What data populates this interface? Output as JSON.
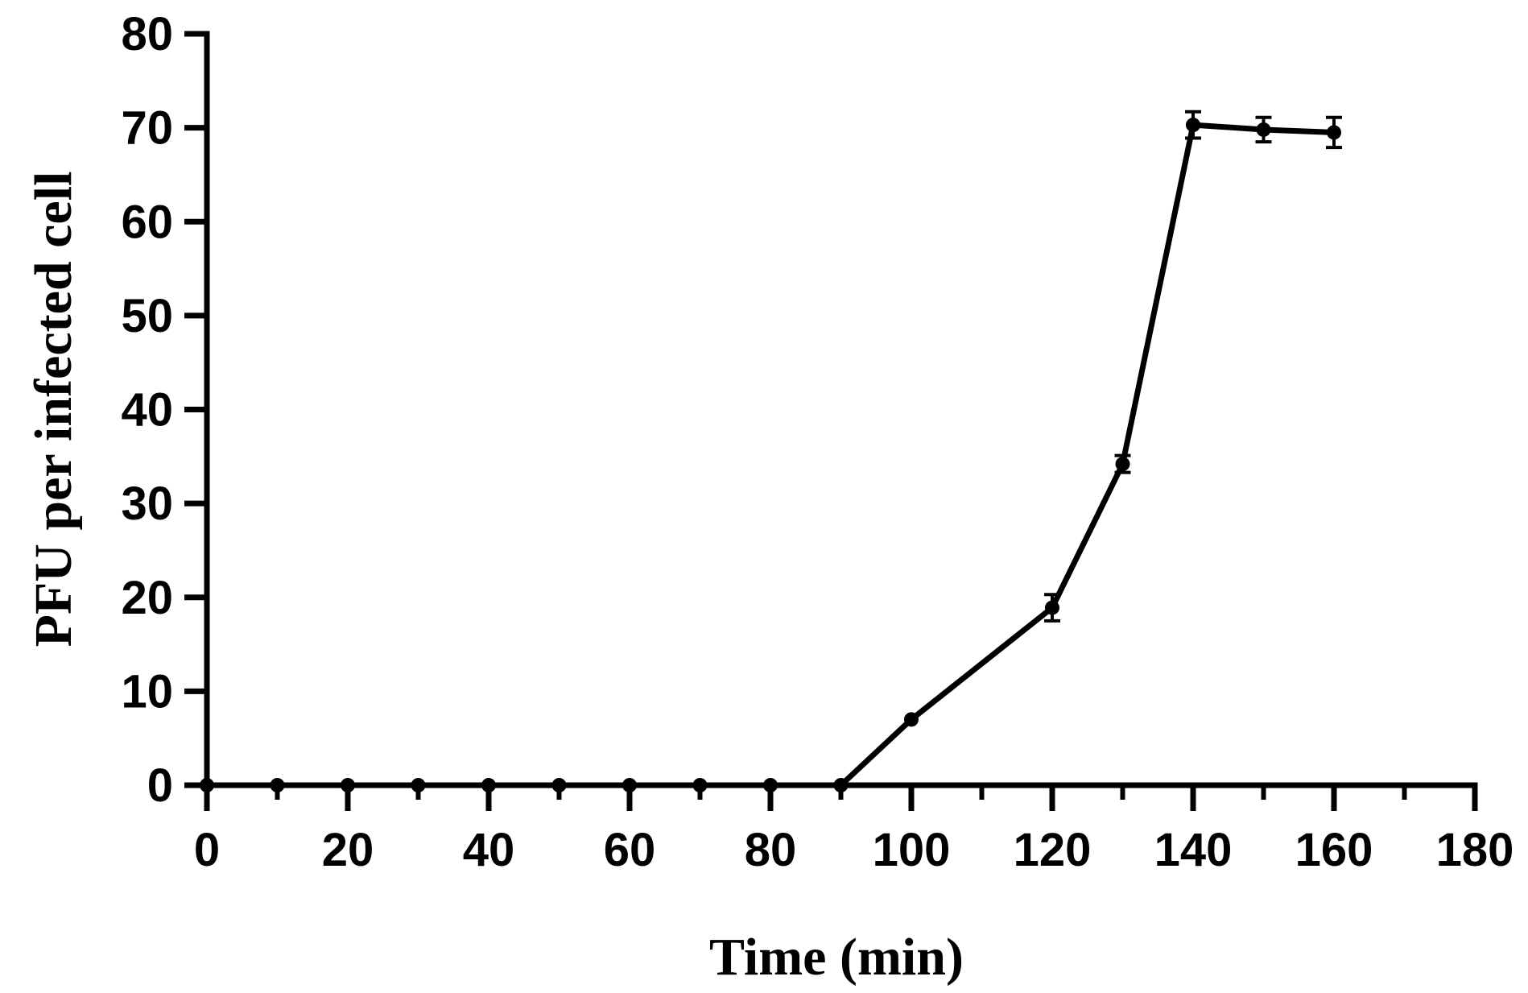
{
  "chart_data": {
    "type": "line",
    "title": "",
    "xlabel": "Time (min)",
    "ylabel": "PFU per infected cell",
    "xlim": [
      0,
      180
    ],
    "ylim": [
      0,
      80
    ],
    "x_ticks": [
      0,
      20,
      40,
      60,
      80,
      100,
      120,
      140,
      160,
      180
    ],
    "y_ticks": [
      0,
      10,
      20,
      30,
      40,
      50,
      60,
      70,
      80
    ],
    "grid": false,
    "legend": "none",
    "series": [
      {
        "color": "#000000",
        "marker": "circle",
        "x": [
          0,
          10,
          20,
          30,
          40,
          50,
          60,
          70,
          80,
          90,
          100,
          120,
          130,
          140,
          150,
          160
        ],
        "y": [
          0,
          0,
          0,
          0,
          0,
          0,
          0,
          0,
          0,
          0,
          7,
          18.9,
          34.2,
          70.3,
          69.8,
          69.5
        ],
        "error": [
          0,
          0,
          0,
          0,
          0,
          0,
          0,
          0,
          0,
          0,
          0,
          1.4,
          0.9,
          1.4,
          1.3,
          1.6
        ]
      }
    ]
  }
}
